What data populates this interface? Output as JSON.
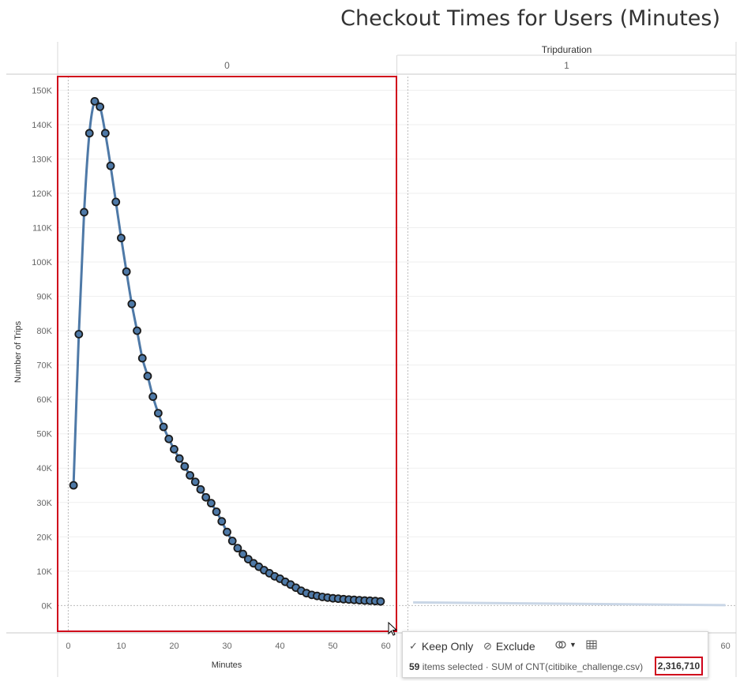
{
  "title": "Checkout Times for Users (Minutes)",
  "column_header": "Tripduration",
  "panes": [
    {
      "label": "0"
    },
    {
      "label": "1"
    }
  ],
  "tooltip": {
    "keep_only_label": "Keep Only",
    "exclude_label": "Exclude",
    "items_count": "59",
    "items_text": "items selected",
    "sum_text": "· SUM of CNT(citibike_challenge.csv)",
    "total": "2,316,710"
  },
  "chart_data": {
    "type": "line",
    "title": "Checkout Times for Users (Minutes)",
    "xlabel": "Minutes",
    "ylabel": "Number of Trips",
    "xlim": [
      -2,
      62
    ],
    "ylim": [
      -7500,
      154000
    ],
    "x_ticks": [
      0,
      10,
      20,
      30,
      40,
      50,
      60
    ],
    "x_tick_labels": [
      "0",
      "10",
      "20",
      "30",
      "40",
      "50",
      "60"
    ],
    "y_ticks": [
      0,
      10000,
      20000,
      30000,
      40000,
      50000,
      60000,
      70000,
      80000,
      90000,
      100000,
      110000,
      120000,
      130000,
      140000,
      150000
    ],
    "y_tick_labels": [
      "0K",
      "10K",
      "20K",
      "30K",
      "40K",
      "50K",
      "60K",
      "70K",
      "80K",
      "90K",
      "100K",
      "110K",
      "120K",
      "130K",
      "140K",
      "150K"
    ],
    "grid": true,
    "line_color": "#4e79a7",
    "selection_color": "#d0021b",
    "series": [
      {
        "pane": "0",
        "x": [
          1,
          2,
          3,
          4,
          5,
          6,
          7,
          8,
          9,
          10,
          11,
          12,
          13,
          14,
          15,
          16,
          17,
          18,
          19,
          20,
          21,
          22,
          23,
          24,
          25,
          26,
          27,
          28,
          29,
          30,
          31,
          32,
          33,
          34,
          35,
          36,
          37,
          38,
          39,
          40,
          41,
          42,
          43,
          44,
          45,
          46,
          47,
          48,
          49,
          50,
          51,
          52,
          53,
          54,
          55,
          56,
          57,
          58,
          59
        ],
        "y": [
          35000,
          79000,
          114500,
          137500,
          146800,
          145200,
          137500,
          128000,
          117500,
          107000,
          97200,
          87800,
          80000,
          72000,
          66800,
          60800,
          56000,
          52000,
          48500,
          45500,
          42800,
          40500,
          37900,
          36000,
          33800,
          31500,
          29800,
          27300,
          24500,
          21400,
          18800,
          16700,
          15000,
          13500,
          12300,
          11300,
          10300,
          9400,
          8500,
          7800,
          6900,
          6100,
          5200,
          4300,
          3600,
          3100,
          2800,
          2500,
          2300,
          2100,
          2000,
          1850,
          1750,
          1650,
          1550,
          1450,
          1400,
          1300,
          1200
        ]
      },
      {
        "pane": "1",
        "x": [
          1,
          60
        ],
        "y": [
          900,
          100
        ]
      }
    ]
  }
}
